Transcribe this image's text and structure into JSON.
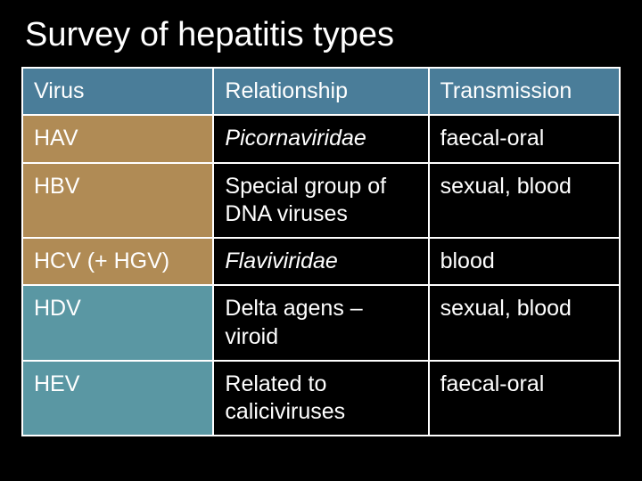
{
  "title": "Survey of hepatitis types",
  "table": {
    "columns": [
      "Virus",
      "Relationship",
      "Transmission"
    ],
    "column_widths_pct": [
      32,
      36,
      32
    ],
    "header_bg": "#4a7d99",
    "group_a_bg": "#b08b55",
    "group_b_bg": "#5a97a3",
    "border_color": "#ffffff",
    "text_color": "#ffffff",
    "background": "#000000",
    "font_size_pt": 25,
    "rows": [
      {
        "virus": "HAV",
        "relationship": "Picornaviridae",
        "relationship_italic": true,
        "transmission": "faecal-oral",
        "group": "a"
      },
      {
        "virus": "HBV",
        "relationship": "Special group of DNA viruses",
        "relationship_italic": false,
        "transmission": "sexual, blood",
        "group": "a"
      },
      {
        "virus": "HCV (+ HGV)",
        "relationship": "Flaviviridae",
        "relationship_italic": true,
        "transmission": "blood",
        "group": "a"
      },
      {
        "virus": "HDV",
        "relationship": "Delta agens – viroid",
        "relationship_italic": false,
        "transmission": "sexual, blood",
        "group": "b"
      },
      {
        "virus": "HEV",
        "relationship": "Related to caliciviruses",
        "relationship_italic": false,
        "transmission": "faecal-oral",
        "group": "b"
      }
    ]
  }
}
